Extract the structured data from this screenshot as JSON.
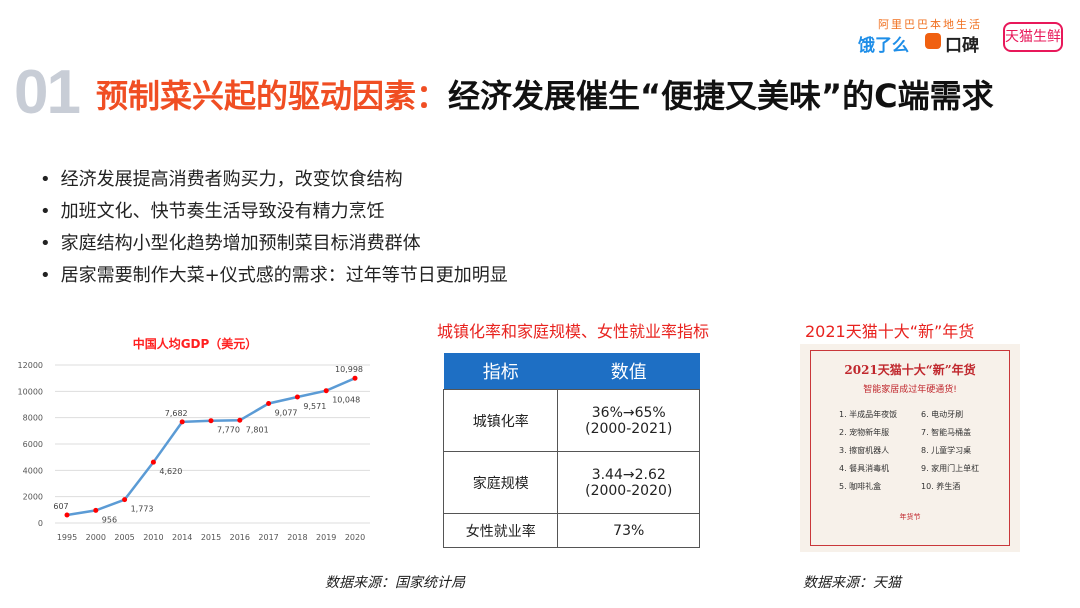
{
  "logos": {
    "alibaba": "阿里巴巴本地生活",
    "eleme": "饿了么",
    "koubei": "口碑",
    "tmall_fresh": "天猫生鲜"
  },
  "header": {
    "number": "01",
    "title_red": "预制菜兴起的驱动因素：",
    "title_black": "经济发展催生“便捷又美味”的C端需求"
  },
  "bullets": [
    "经济发展提高消费者购买力，改变饮食结构",
    "加班文化、快节奏生活导致没有精力烹饪",
    "家庭结构小型化趋势增加预制菜目标消费群体",
    "居家需要制作大菜+仪式感的需求：过年等节日更加明显"
  ],
  "chart_data": {
    "type": "line",
    "title": "中国人均GDP（美元）",
    "categories": [
      "1995",
      "2000",
      "2005",
      "2010",
      "2014",
      "2015",
      "2016",
      "2017",
      "2018",
      "2019",
      "2020"
    ],
    "values": [
      607,
      956,
      1773,
      4620,
      7682,
      7770,
      7801,
      9077,
      9571,
      10048,
      10998
    ],
    "labels": [
      "607",
      "956",
      "1,773",
      "4,620",
      "7,682",
      "7,770",
      "7,801",
      "9,077",
      "9,571",
      "10,048",
      "10,998"
    ],
    "yticks": [
      "0",
      "2000",
      "4000",
      "6000",
      "8000",
      "10000",
      "12000"
    ],
    "ylim": [
      0,
      12000
    ],
    "grid": true,
    "line_color": "#5b9bd5",
    "marker_color": "#ff0000"
  },
  "table": {
    "caption": "城镇化率和家庭规模、女性就业率指标",
    "headers": [
      "指标",
      "数值"
    ],
    "rows": [
      [
        "城镇化率",
        "36%→65%",
        "(2000-2021)"
      ],
      [
        "家庭规模",
        "3.44→2.62",
        "(2000-2020)"
      ],
      [
        "女性就业率",
        "73%",
        ""
      ]
    ]
  },
  "poster": {
    "caption": "2021天猫十大“新”年货",
    "title": "2021天猫十大“新”年货",
    "subtitle": "智能家居成过年硬通货!",
    "items": [
      "1. 半成品年夜饭",
      "6. 电动牙刷",
      "2. 宠物新年服",
      "7. 智能马桶盖",
      "3. 擦窗机器人",
      "8. 儿童学习桌",
      "4. 餐具消毒机",
      "9. 家用门上单杠",
      "5. 咖啡礼盒",
      "10. 养生酒"
    ],
    "badge": "年货节"
  },
  "sources": {
    "left": "数据来源：国家统计局",
    "right": "数据来源：天猫"
  }
}
